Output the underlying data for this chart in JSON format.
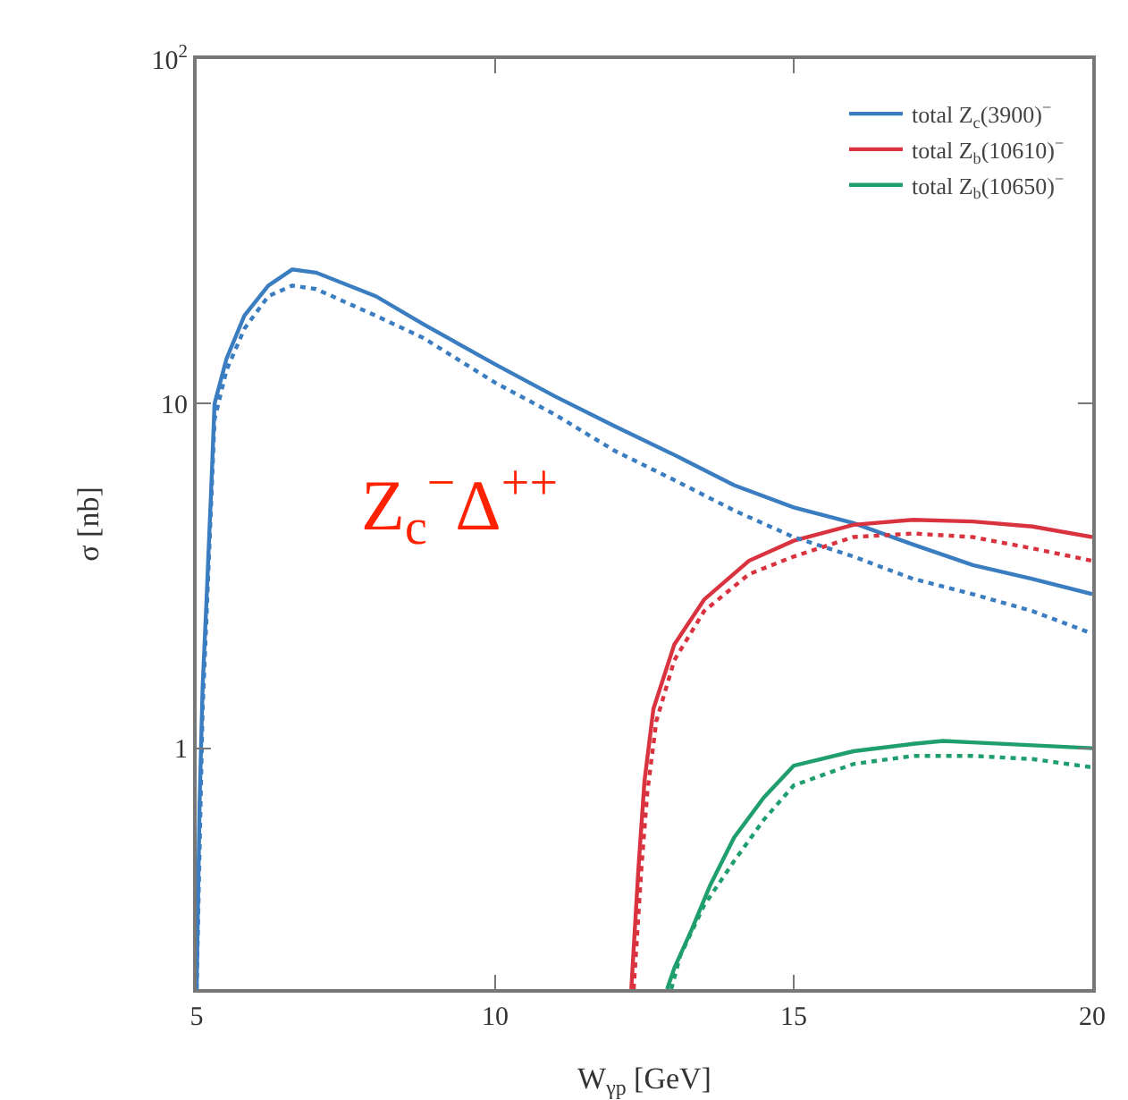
{
  "chart_data": {
    "type": "line",
    "xlabel": "W$_{γp}$ [GeV]",
    "ylabel": "σ [nb]",
    "log": "y",
    "xlim": [
      5,
      20
    ],
    "ylim": [
      0.2,
      100
    ],
    "xticks": [
      5,
      10,
      15,
      20
    ],
    "yticks": [
      1,
      10,
      {
        "value": 100,
        "label": "10$^{2}$"
      }
    ],
    "grid": false,
    "legend": "top right",
    "annotations": [
      "Z$_{c}$$^{−}$Δ$^{++}$"
    ],
    "series": [
      {
        "name": "total Z$_{c}$(3900)$^{−}$",
        "color": "#3a7dc0",
        "line_style": "solid",
        "x": [
          5.0,
          5.05,
          5.1,
          5.17,
          5.25,
          5.3,
          5.5,
          5.8,
          6.2,
          6.6,
          7,
          8,
          8.8,
          10,
          11,
          12,
          13,
          14,
          15,
          16,
          17,
          18,
          19,
          20
        ],
        "values": [
          0.2,
          0.7,
          1.5,
          2.8,
          6,
          10,
          13.5,
          18,
          22,
          24.5,
          24,
          20.5,
          17,
          13,
          10.5,
          8.6,
          7.1,
          5.8,
          5.0,
          4.5,
          3.9,
          3.4,
          3.1,
          2.8
        ]
      },
      {
        "name": "total Z$_{b}$(10610)$^{−}$",
        "color": "#d9333f",
        "line_style": "solid",
        "x": [
          12.28,
          12.4,
          12.5,
          12.65,
          13,
          13.5,
          14.25,
          15,
          16,
          17,
          18,
          19,
          20
        ],
        "values": [
          0.2,
          0.45,
          0.8,
          1.3,
          2.0,
          2.7,
          3.5,
          4.0,
          4.45,
          4.6,
          4.55,
          4.4,
          4.1
        ]
      },
      {
        "name": "total Z$_{b}$(10650)$^{−}$",
        "color": "#1f9e6e",
        "line_style": "solid",
        "x": [
          12.88,
          13.0,
          13.3,
          13.6,
          14,
          14.5,
          15,
          16,
          17,
          17.5,
          18,
          19,
          20
        ],
        "values": [
          0.2,
          0.23,
          0.3,
          0.4,
          0.55,
          0.72,
          0.89,
          0.98,
          1.03,
          1.05,
          1.04,
          1.02,
          1.0
        ]
      },
      {
        "color": "#3a7dc0",
        "line_style": "dotted",
        "x": [
          5.0,
          5.1,
          5.17,
          5.3,
          5.5,
          5.8,
          6.2,
          6.6,
          7,
          8,
          8.8,
          10,
          11,
          12,
          13,
          14,
          15,
          16,
          17,
          18,
          19,
          20
        ],
        "values": [
          0.2,
          1.3,
          2.5,
          9,
          12.5,
          16.5,
          20.5,
          22,
          21.5,
          18,
          15.5,
          11.5,
          9.3,
          7.3,
          6,
          4.9,
          4.1,
          3.6,
          3.1,
          2.8,
          2.5,
          2.15
        ]
      },
      {
        "color": "#d9333f",
        "line_style": "dotted",
        "x": [
          12.32,
          12.45,
          12.55,
          12.7,
          13,
          13.5,
          14.25,
          15,
          16,
          17,
          18,
          19,
          20
        ],
        "values": [
          0.2,
          0.45,
          0.75,
          1.2,
          1.8,
          2.5,
          3.2,
          3.6,
          4.1,
          4.2,
          4.1,
          3.8,
          3.5
        ]
      },
      {
        "color": "#1f9e6e",
        "line_style": "dotted",
        "x": [
          12.95,
          13.1,
          13.5,
          14,
          14.5,
          15,
          16,
          17,
          18,
          19,
          20
        ],
        "values": [
          0.2,
          0.25,
          0.35,
          0.47,
          0.62,
          0.78,
          0.9,
          0.95,
          0.95,
          0.93,
          0.88
        ]
      }
    ]
  }
}
